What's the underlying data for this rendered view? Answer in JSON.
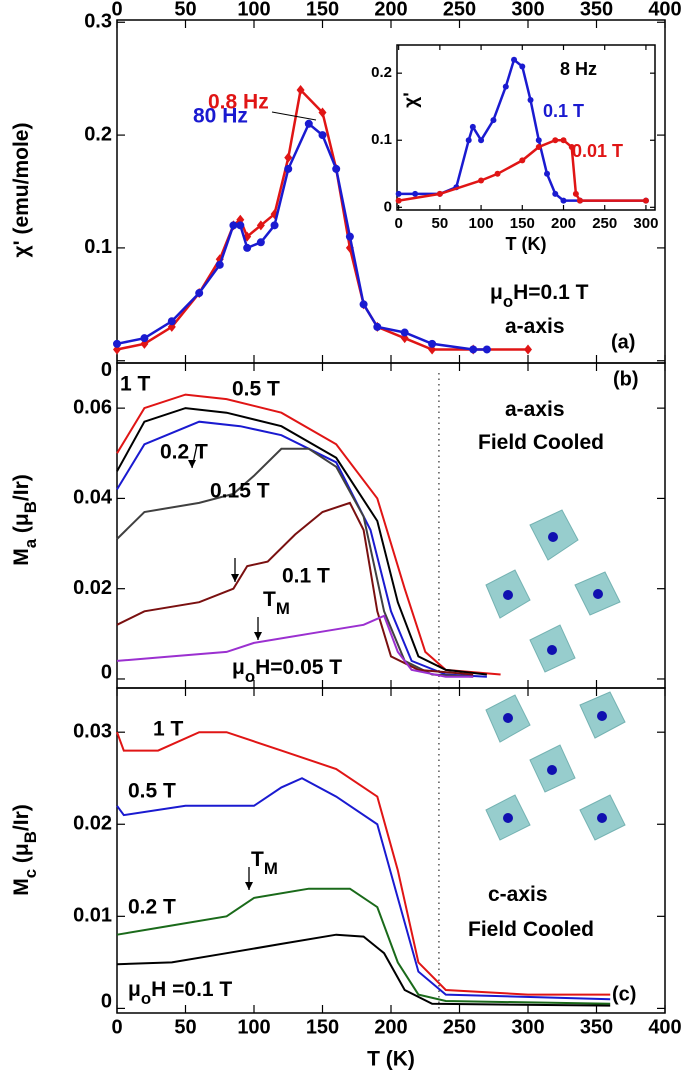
{
  "chart_data": [
    {
      "type": "line",
      "panel_label": "(a)",
      "ylabel": [
        "χ' (emu/mole)"
      ],
      "xlim": [
        0,
        400
      ],
      "xticks": [
        0,
        50,
        100,
        150,
        200,
        250,
        300,
        350,
        400
      ],
      "ylim": [
        -0.002,
        0.302
      ],
      "yticks": [
        0,
        0.1,
        0.2,
        0.3
      ],
      "annotations": [
        [
          "μ",
          "o",
          "H=0.1 T"
        ],
        [
          "a-axis"
        ]
      ],
      "series": [
        {
          "name": "0.8 Hz",
          "color": "#e01515",
          "marker": "diamond",
          "x": [
            0,
            20,
            40,
            60,
            75,
            85,
            90,
            95,
            105,
            115,
            125,
            134,
            150,
            160,
            170,
            180,
            190,
            210,
            230,
            260,
            300
          ],
          "values": [
            0.01,
            0.015,
            0.03,
            0.06,
            0.09,
            0.12,
            0.125,
            0.11,
            0.12,
            0.13,
            0.18,
            0.24,
            0.22,
            0.17,
            0.1,
            0.05,
            0.03,
            0.02,
            0.01,
            0.01,
            0.01
          ]
        },
        {
          "name": "80 Hz",
          "color": "#1a1ad0",
          "marker": "circle",
          "x": [
            0,
            20,
            40,
            60,
            75,
            85,
            90,
            95,
            105,
            115,
            125,
            140,
            150,
            160,
            170,
            180,
            190,
            210,
            230,
            260,
            270
          ],
          "values": [
            0.015,
            0.02,
            0.035,
            0.06,
            0.085,
            0.12,
            0.12,
            0.1,
            0.105,
            0.12,
            0.17,
            0.21,
            0.2,
            0.17,
            0.11,
            0.05,
            0.03,
            0.025,
            0.015,
            0.01,
            0.01
          ]
        }
      ]
    },
    {
      "type": "line",
      "inset": true,
      "ylabel": [
        "χ'"
      ],
      "xlabel": "T (K)",
      "annotations": [
        [
          "8 Hz"
        ]
      ],
      "xlim": [
        -2,
        311
      ],
      "xticks": [
        0,
        50,
        100,
        150,
        200,
        250,
        300
      ],
      "ylim": [
        -0.004,
        0.242
      ],
      "yticks": [
        0,
        0.1,
        0.2
      ],
      "series": [
        {
          "name": "0.1 T",
          "color": "#1a1ad0",
          "marker": "circle",
          "x": [
            0,
            20,
            50,
            70,
            85,
            90,
            100,
            115,
            130,
            140,
            150,
            160,
            170,
            180,
            190,
            200,
            220,
            300
          ],
          "values": [
            0.02,
            0.02,
            0.02,
            0.03,
            0.1,
            0.12,
            0.1,
            0.13,
            0.18,
            0.22,
            0.21,
            0.16,
            0.1,
            0.05,
            0.02,
            0.01,
            0.01,
            0.01
          ]
        },
        {
          "name": "0.01 T",
          "color": "#e01515",
          "marker": "circle",
          "x": [
            0,
            50,
            100,
            120,
            150,
            170,
            190,
            200,
            210,
            215,
            220,
            300
          ],
          "values": [
            0.01,
            0.02,
            0.04,
            0.05,
            0.07,
            0.09,
            0.1,
            0.1,
            0.09,
            0.02,
            0.01,
            0.01
          ]
        }
      ]
    },
    {
      "type": "line",
      "panel_label": "(b)",
      "ylabel": [
        "M",
        "a",
        " (μ",
        "B",
        "/Ir)"
      ],
      "annotations": [
        [
          "a-axis"
        ],
        [
          "Field Cooled"
        ],
        [
          "T",
          "M"
        ]
      ],
      "xlim": [
        0,
        400
      ],
      "xticks": [
        0,
        50,
        100,
        150,
        200,
        250,
        300,
        350,
        400
      ],
      "ylim": [
        -0.002,
        0.07
      ],
      "yticks": [
        0,
        0.02,
        0.04,
        0.06
      ],
      "vline": 235,
      "series": [
        {
          "name": "1 T",
          "color": "#e01515",
          "x": [
            0,
            20,
            50,
            80,
            120,
            160,
            190,
            210,
            225,
            240,
            280
          ],
          "values": [
            0.05,
            0.06,
            0.063,
            0.062,
            0.059,
            0.052,
            0.04,
            0.02,
            0.006,
            0.002,
            0.001
          ]
        },
        {
          "name": "0.5 T",
          "color": "#000000",
          "x": [
            0,
            20,
            50,
            80,
            120,
            160,
            190,
            205,
            220,
            240,
            270
          ],
          "values": [
            0.046,
            0.057,
            0.06,
            0.059,
            0.056,
            0.049,
            0.035,
            0.017,
            0.005,
            0.002,
            0.001
          ]
        },
        {
          "name": "0.2 T",
          "color": "#1a1ad0",
          "x": [
            0,
            20,
            60,
            90,
            120,
            160,
            185,
            200,
            215,
            240,
            270
          ],
          "values": [
            0.042,
            0.052,
            0.057,
            0.056,
            0.054,
            0.048,
            0.033,
            0.015,
            0.004,
            0.001,
            0.0005
          ]
        },
        {
          "name": "0.15 T",
          "color": "#404040",
          "x": [
            0,
            20,
            60,
            85,
            100,
            120,
            140,
            160,
            180,
            195,
            210,
            230,
            260
          ],
          "values": [
            0.031,
            0.037,
            0.039,
            0.041,
            0.045,
            0.051,
            0.051,
            0.047,
            0.036,
            0.015,
            0.004,
            0.001,
            0.0005
          ]
        },
        {
          "name": "0.1 T",
          "color": "#7a1010",
          "x": [
            0,
            20,
            60,
            85,
            95,
            110,
            130,
            150,
            170,
            180,
            190,
            200,
            220,
            260
          ],
          "values": [
            0.012,
            0.015,
            0.017,
            0.02,
            0.025,
            0.026,
            0.032,
            0.037,
            0.039,
            0.033,
            0.015,
            0.005,
            0.002,
            0.001
          ]
        },
        {
          "name": [
            "μ",
            "o",
            "H=0.05 T"
          ],
          "color": "#9b30d0",
          "x": [
            0,
            40,
            80,
            100,
            140,
            180,
            195,
            205,
            215,
            240,
            260
          ],
          "values": [
            0.004,
            0.005,
            0.006,
            0.008,
            0.01,
            0.012,
            0.014,
            0.006,
            0.002,
            0.0005,
            0.0005
          ]
        }
      ]
    },
    {
      "type": "line",
      "panel_label": "(c)",
      "ylabel": [
        "M",
        "c",
        " (μ",
        "B",
        "/Ir)"
      ],
      "xlabel": "T (K)",
      "annotations": [
        [
          "c-axis"
        ],
        [
          "Field Cooled"
        ],
        [
          "T",
          "M"
        ]
      ],
      "xlim": [
        0,
        400
      ],
      "xticks": [
        0,
        50,
        100,
        150,
        200,
        250,
        300,
        350,
        400
      ],
      "ylim": [
        -0.0005,
        0.0348
      ],
      "yticks": [
        0,
        0.01,
        0.02,
        0.03
      ],
      "vline": 235,
      "series": [
        {
          "name": "1 T",
          "color": "#e01515",
          "x": [
            0,
            5,
            30,
            60,
            80,
            120,
            160,
            190,
            205,
            220,
            240,
            300,
            360
          ],
          "values": [
            0.03,
            0.028,
            0.028,
            0.03,
            0.03,
            0.028,
            0.026,
            0.023,
            0.015,
            0.005,
            0.002,
            0.0015,
            0.0015
          ]
        },
        {
          "name": "0.5 T",
          "color": "#1a1ad0",
          "x": [
            0,
            5,
            50,
            100,
            120,
            135,
            160,
            190,
            205,
            220,
            240,
            360
          ],
          "values": [
            0.022,
            0.021,
            0.022,
            0.022,
            0.024,
            0.025,
            0.023,
            0.02,
            0.012,
            0.004,
            0.0015,
            0.001
          ]
        },
        {
          "name": "0.2 T",
          "color": "#1a6a1a",
          "x": [
            0,
            40,
            80,
            100,
            140,
            170,
            190,
            205,
            220,
            240,
            360
          ],
          "values": [
            0.008,
            0.009,
            0.01,
            0.012,
            0.013,
            0.013,
            0.011,
            0.005,
            0.0015,
            0.0008,
            0.0005
          ]
        },
        {
          "name": [
            "μ",
            "o",
            "H =0.1 T"
          ],
          "color": "#000000",
          "x": [
            0,
            40,
            80,
            120,
            160,
            180,
            195,
            210,
            230,
            360
          ],
          "values": [
            0.0048,
            0.005,
            0.006,
            0.007,
            0.008,
            0.0078,
            0.006,
            0.002,
            0.0005,
            0.0003
          ]
        }
      ]
    }
  ]
}
